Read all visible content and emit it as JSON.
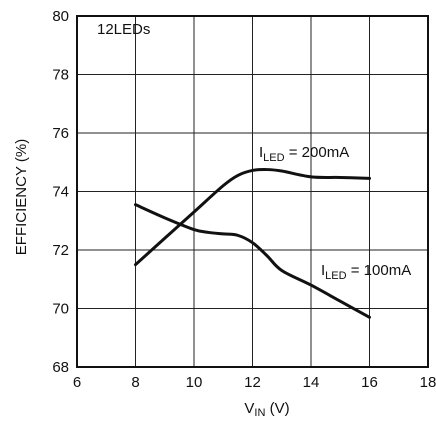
{
  "chart_data": {
    "type": "line",
    "xlabel_main": "V",
    "xlabel_sub": "IN",
    "xlabel_unit": " (V)",
    "ylabel": "EFFICIENCY (%)",
    "xlim": [
      6,
      18
    ],
    "ylim": [
      68,
      80
    ],
    "x_ticks": [
      "6",
      "8",
      "10",
      "12",
      "14",
      "16",
      "18"
    ],
    "y_ticks": [
      "68",
      "70",
      "72",
      "74",
      "76",
      "78",
      "80"
    ],
    "grid": true,
    "annotations": {
      "condition": "12LEDs",
      "series_200_prefix": "I",
      "series_200_sub": "LED",
      "series_200_value": " = 200mA",
      "series_100_prefix": "I",
      "series_100_sub": "LED",
      "series_100_value": " = 100mA"
    },
    "series": [
      {
        "key": "ILED_200mA",
        "x": [
          8,
          9,
          10,
          11,
          11.5,
          12,
          12.5,
          13,
          14,
          15,
          16
        ],
        "y": [
          71.5,
          72.4,
          73.3,
          74.2,
          74.55,
          74.72,
          74.75,
          74.7,
          74.5,
          74.48,
          74.45
        ]
      },
      {
        "key": "ILED_100mA",
        "x": [
          8,
          9,
          10,
          10.5,
          11,
          11.5,
          12,
          12.5,
          13,
          14,
          15,
          16
        ],
        "y": [
          73.55,
          73.1,
          72.7,
          72.6,
          72.55,
          72.5,
          72.25,
          71.8,
          71.3,
          70.8,
          70.25,
          69.7
        ]
      }
    ]
  }
}
